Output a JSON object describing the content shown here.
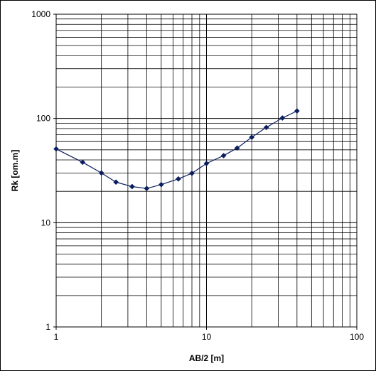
{
  "chart_data": {
    "type": "line",
    "title": "",
    "xlabel": "AB/2 [m]",
    "ylabel": "Rk [om.m]",
    "x_scale": "log",
    "y_scale": "log",
    "xlim": [
      1,
      100
    ],
    "ylim": [
      1,
      1000
    ],
    "grid": true,
    "x_tick_labels": [
      "1",
      "10",
      "100"
    ],
    "y_tick_labels": [
      "1",
      "10",
      "100",
      "1000"
    ],
    "series": [
      {
        "x": [
          1,
          1.5,
          2,
          2.5,
          3.2,
          4,
          5,
          6.5,
          8,
          10,
          13,
          16,
          20,
          25,
          32,
          40
        ],
        "y": [
          51,
          38,
          30,
          24.5,
          22.2,
          21.3,
          23.2,
          26.3,
          29.8,
          37,
          44,
          52,
          66,
          82,
          101,
          118
        ],
        "color": "#0b1f5e",
        "marker": "diamond"
      }
    ]
  }
}
